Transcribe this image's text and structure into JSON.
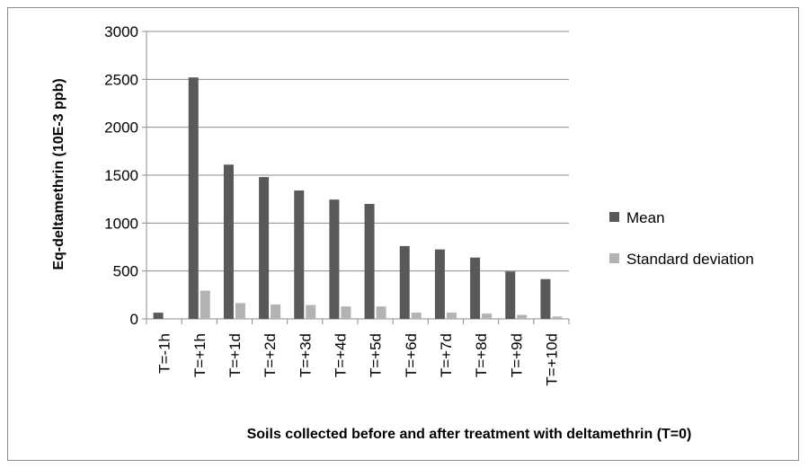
{
  "chart_data": {
    "type": "bar",
    "title": "",
    "xlabel": "Soils collected before and after treatment with deltamethrin (T=0)",
    "ylabel": "Eq-deltamethrin (10E-3 ppb)",
    "ylim": [
      0,
      3000
    ],
    "yticks": [
      0,
      500,
      1000,
      1500,
      2000,
      2500,
      3000
    ],
    "grid": true,
    "legend_position": "right",
    "categories": [
      "T=-1h",
      "T=+1h",
      "T=+1d",
      "T=+2d",
      "T=+3d",
      "T=+4d",
      "T=+5d",
      "T=+6d",
      "T=+7d",
      "T=+8d",
      "T=+9d",
      "T=+10d"
    ],
    "series": [
      {
        "name": "Mean",
        "color": "#595959",
        "values": [
          65,
          2520,
          1610,
          1480,
          1340,
          1245,
          1200,
          760,
          725,
          640,
          495,
          415
        ]
      },
      {
        "name": "Standard deviation",
        "color": "#b3b3b3",
        "values": [
          0,
          295,
          165,
          150,
          145,
          130,
          130,
          65,
          65,
          55,
          42,
          25
        ]
      }
    ]
  }
}
